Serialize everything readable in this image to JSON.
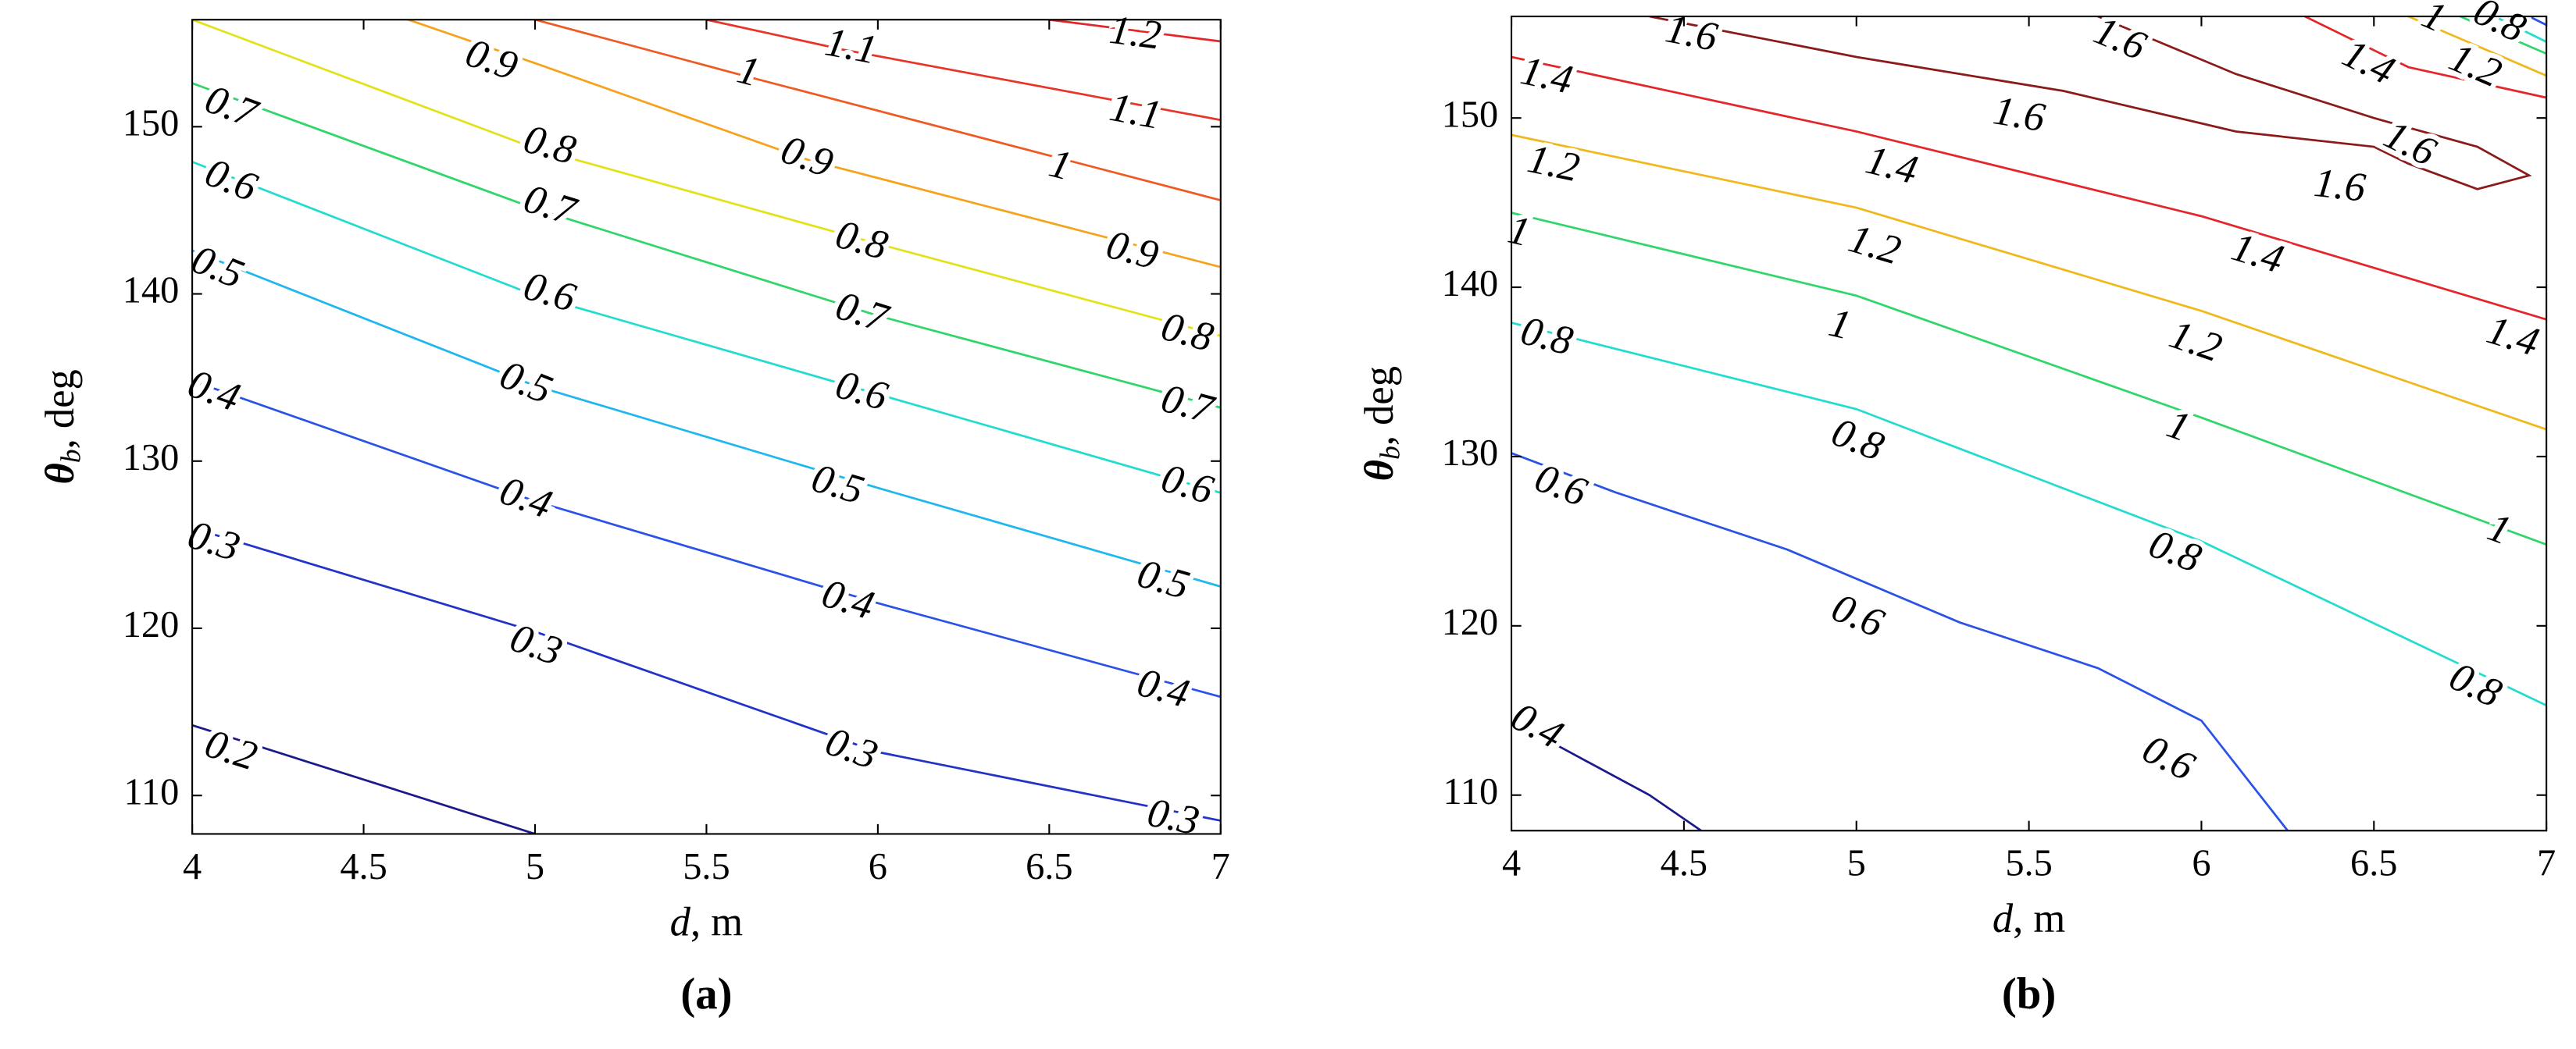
{
  "chart_data": [
    {
      "type": "contour",
      "caption": "(a)",
      "xlabel": {
        "symbol": "d",
        "text": ", m"
      },
      "ylabel": {
        "symbol": "θ",
        "subscript": "b",
        "text": ", deg"
      },
      "xlim": [
        4,
        7
      ],
      "ylim": [
        107.7,
        156.4
      ],
      "xticks": [
        4,
        4.5,
        5,
        5.5,
        6,
        6.5,
        7
      ],
      "yticks": [
        110,
        120,
        130,
        140,
        150
      ],
      "contours": [
        {
          "level": 1.2,
          "color": "#e4262a",
          "x": [
            6.5,
            7
          ],
          "y": [
            156.4,
            155.1
          ],
          "labels": [
            [
              6.75,
              155.4
            ]
          ]
        },
        {
          "level": 1.1,
          "color": "#e8352a",
          "x": [
            5.5,
            5.9,
            7
          ],
          "y": [
            156.4,
            154.6,
            150.4
          ],
          "labels": [
            [
              5.92,
              154.6
            ],
            [
              6.75,
              150.7
            ]
          ]
        },
        {
          "level": 1,
          "color": "#f05a22",
          "x": [
            5.0,
            5.6,
            7
          ],
          "y": [
            156.4,
            153.1,
            145.6
          ],
          "labels": [
            [
              5.62,
              153.1
            ],
            [
              6.53,
              147.5
            ]
          ]
        },
        {
          "level": 0.9,
          "color": "#f6a21b",
          "x": [
            4.63,
            5,
            5.8,
            7
          ],
          "y": [
            156.4,
            153.8,
            148.0,
            141.6
          ],
          "labels": [
            [
              4.87,
              153.8
            ],
            [
              5.79,
              148.0
            ],
            [
              6.74,
              142.4
            ]
          ]
        },
        {
          "level": 0.8,
          "color": "#e3e21a",
          "x": [
            4,
            5,
            6,
            7
          ],
          "y": [
            156.4,
            148.7,
            143.0,
            137.5
          ],
          "labels": [
            [
              5.04,
              148.7
            ],
            [
              5.95,
              143.0
            ],
            [
              6.9,
              137.5
            ]
          ]
        },
        {
          "level": 0.7,
          "color": "#2fd66a",
          "x": [
            4,
            5,
            6,
            7
          ],
          "y": [
            152.6,
            145.1,
            138.7,
            133.2
          ],
          "labels": [
            [
              4.11,
              151.0
            ],
            [
              5.04,
              145.1
            ],
            [
              5.95,
              138.7
            ],
            [
              6.9,
              133.2
            ]
          ]
        },
        {
          "level": 0.6,
          "color": "#23dcd0",
          "x": [
            4,
            5,
            6,
            7
          ],
          "y": [
            147.9,
            139.9,
            134.0,
            128.1
          ],
          "labels": [
            [
              4.11,
              146.6
            ],
            [
              5.04,
              139.9
            ],
            [
              5.95,
              134.0
            ],
            [
              6.9,
              128.4
            ]
          ]
        },
        {
          "level": 0.5,
          "color": "#1fb7ee",
          "x": [
            4,
            5,
            6,
            7
          ],
          "y": [
            142.6,
            134.5,
            128.4,
            122.5
          ],
          "labels": [
            [
              4.07,
              141.4
            ],
            [
              4.97,
              134.5
            ],
            [
              5.88,
              128.4
            ],
            [
              6.83,
              122.7
            ]
          ]
        },
        {
          "level": 0.4,
          "color": "#2a52e6",
          "x": [
            4,
            5,
            6,
            7
          ],
          "y": [
            134.8,
            127.6,
            121.5,
            115.9
          ],
          "labels": [
            [
              4.06,
              134.0
            ],
            [
              4.97,
              127.6
            ],
            [
              5.91,
              121.5
            ],
            [
              6.83,
              116.2
            ]
          ]
        },
        {
          "level": 0.3,
          "color": "#2233c8",
          "x": [
            4,
            5,
            6,
            7
          ],
          "y": [
            126.0,
            119.8,
            112.6,
            108.5
          ],
          "labels": [
            [
              4.06,
              125.0
            ],
            [
              5.0,
              118.8
            ],
            [
              5.92,
              112.6
            ],
            [
              6.86,
              108.5
            ]
          ]
        },
        {
          "level": 0.2,
          "color": "#1a1a8c",
          "x": [
            4,
            5
          ],
          "y": [
            114.2,
            107.7
          ],
          "labels": [
            [
              4.11,
              112.5
            ]
          ]
        }
      ]
    },
    {
      "type": "contour",
      "caption": "(b)",
      "xlabel": {
        "symbol": "d",
        "text": ", m"
      },
      "ylabel": {
        "symbol": "θ",
        "subscript": "b",
        "text": ", deg"
      },
      "xlim": [
        4,
        7
      ],
      "ylim": [
        107.9,
        156.0
      ],
      "xticks": [
        4,
        4.5,
        5,
        5.5,
        6,
        6.5,
        7
      ],
      "yticks": [
        110,
        120,
        130,
        140,
        150
      ],
      "contours": [
        {
          "level": 1.6,
          "color": "#8b1a1a",
          "x": [
            4.4,
            5,
            5.6,
            6.1,
            6.5,
            6.6,
            6.8,
            6.95,
            6.8,
            6.5,
            6.1,
            5.7
          ],
          "y": [
            156.0,
            153.6,
            151.6,
            149.2,
            148.3,
            147.3,
            145.8,
            146.6,
            148.3,
            150.0,
            152.6,
            156.0
          ],
          "labels": [
            [
              4.52,
              154.8
            ],
            [
              5.47,
              150.0
            ],
            [
              5.76,
              154.5
            ],
            [
              6.6,
              148.3
            ],
            [
              6.4,
              145.8
            ]
          ]
        },
        {
          "level": 1.4,
          "color": "#e4262a",
          "x": [
            4,
            5,
            6,
            7
          ],
          "y": [
            153.6,
            149.2,
            144.2,
            138.1
          ],
          "labels": [
            [
              4.1,
              152.3
            ],
            [
              5.1,
              147.0
            ],
            [
              6.16,
              141.8
            ],
            [
              6.9,
              136.9
            ]
          ]
        },
        {
          "level": 1.4,
          "color": "#e4262a",
          "x": [
            6.3,
            6.6,
            7
          ],
          "y": [
            156.0,
            153.0,
            151.2
          ],
          "labels": [
            [
              6.48,
              153.1
            ]
          ]
        },
        {
          "level": 1.2,
          "color": "#f0b81b",
          "x": [
            4,
            5,
            6,
            7
          ],
          "y": [
            149.0,
            144.7,
            138.6,
            131.6
          ],
          "labels": [
            [
              4.12,
              147.1
            ],
            [
              5.05,
              142.3
            ],
            [
              5.98,
              136.6
            ]
          ]
        },
        {
          "level": 1.2,
          "color": "#f0b81b",
          "x": [
            6.6,
            7
          ],
          "y": [
            156.0,
            152.5
          ],
          "labels": [
            [
              6.79,
              152.9
            ]
          ]
        },
        {
          "level": 1,
          "color": "#2fd66a",
          "x": [
            4,
            5,
            6,
            7
          ],
          "y": [
            144.4,
            139.5,
            132.3,
            124.8
          ],
          "labels": [
            [
              4.02,
              143.1
            ],
            [
              4.95,
              137.6
            ],
            [
              5.93,
              131.6
            ],
            [
              6.86,
              125.5
            ]
          ]
        },
        {
          "level": 1,
          "color": "#2fd66a",
          "x": [
            6.75,
            7
          ],
          "y": [
            156.0,
            153.8
          ],
          "labels": [
            [
              6.67,
              155.8
            ]
          ]
        },
        {
          "level": 0.8,
          "color": "#23dcd0",
          "x": [
            4,
            5,
            6,
            7
          ],
          "y": [
            137.9,
            132.8,
            125.0,
            115.3
          ],
          "labels": [
            [
              4.1,
              136.9
            ],
            [
              5.0,
              130.8
            ],
            [
              5.92,
              124.2
            ],
            [
              6.79,
              116.3
            ]
          ]
        },
        {
          "level": 0.8,
          "color": "#23dcd0",
          "x": [
            6.85,
            7
          ],
          "y": [
            156.0,
            154.5
          ],
          "labels": [
            [
              6.86,
              155.6
            ]
          ]
        },
        {
          "level": 0.6,
          "color": "#2a52e6",
          "x": [
            4,
            4.3,
            4.8,
            5.3,
            5.7,
            6,
            6.25
          ],
          "y": [
            130.2,
            127.9,
            124.5,
            120.2,
            117.5,
            114.4,
            107.9
          ],
          "labels": [
            [
              4.14,
              128.1
            ],
            [
              5.0,
              120.4
            ],
            [
              5.9,
              112.0
            ]
          ]
        },
        {
          "level": 0.6,
          "color": "#2a52e6",
          "x": [
            6.95,
            7
          ],
          "y": [
            156.0,
            155.5
          ],
          "labels": []
        },
        {
          "level": 0.4,
          "color": "#1a1a8c",
          "x": [
            4,
            4.2,
            4.4,
            4.55
          ],
          "y": [
            114.4,
            112.2,
            110.0,
            107.9
          ],
          "labels": [
            [
              4.07,
              113.9
            ]
          ]
        }
      ]
    }
  ]
}
